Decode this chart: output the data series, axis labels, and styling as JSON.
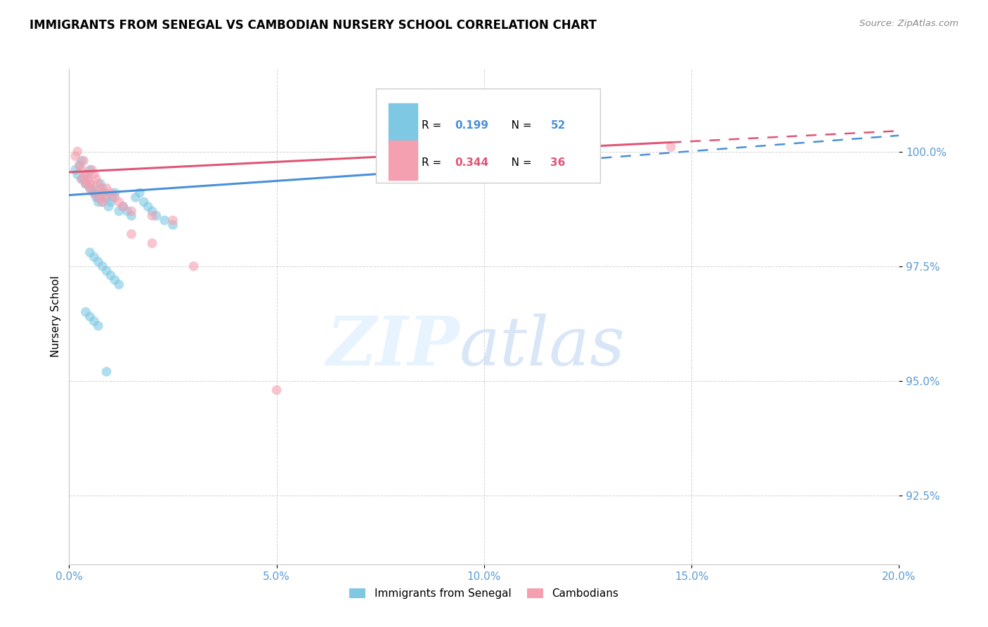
{
  "title": "IMMIGRANTS FROM SENEGAL VS CAMBODIAN NURSERY SCHOOL CORRELATION CHART",
  "source": "Source: ZipAtlas.com",
  "ylabel": "Nursery School",
  "ytick_labels": [
    "92.5%",
    "95.0%",
    "97.5%",
    "100.0%"
  ],
  "ytick_values": [
    92.5,
    95.0,
    97.5,
    100.0
  ],
  "xtick_labels": [
    "0.0%",
    "5.0%",
    "10.0%",
    "15.0%",
    "20.0%"
  ],
  "xtick_values": [
    0.0,
    5.0,
    10.0,
    15.0,
    20.0
  ],
  "xmin": 0.0,
  "xmax": 20.0,
  "ymin": 91.0,
  "ymax": 101.8,
  "legend_label1": "Immigrants from Senegal",
  "legend_label2": "Cambodians",
  "r1": 0.199,
  "n1": 52,
  "r2": 0.344,
  "n2": 36,
  "color_blue": "#7ec8e3",
  "color_pink": "#f4a0b0",
  "color_blue_line": "#4a90d9",
  "color_pink_line": "#e05575",
  "blue_line_x0": 0.0,
  "blue_line_y0": 99.05,
  "blue_line_x1": 10.5,
  "blue_line_y1": 99.7,
  "blue_line_dash_x1": 20.0,
  "blue_line_dash_y1": 100.35,
  "pink_line_x0": 0.0,
  "pink_line_y0": 99.55,
  "pink_line_x1": 14.5,
  "pink_line_y1": 100.2,
  "pink_line_dash_x1": 20.0,
  "pink_line_dash_y1": 100.45,
  "blue_scatter_x": [
    0.15,
    0.2,
    0.25,
    0.3,
    0.35,
    0.4,
    0.45,
    0.5,
    0.55,
    0.6,
    0.65,
    0.7,
    0.75,
    0.8,
    0.85,
    0.9,
    0.95,
    1.0,
    1.05,
    1.1,
    1.2,
    1.3,
    1.4,
    1.5,
    1.6,
    1.7,
    1.8,
    1.9,
    2.0,
    2.1,
    2.3,
    2.5,
    0.3,
    0.4,
    0.5,
    0.6,
    0.7,
    0.8,
    0.5,
    0.6,
    0.7,
    0.8,
    0.9,
    1.0,
    1.1,
    1.2,
    0.4,
    0.5,
    0.6,
    0.7,
    0.9,
    10.5
  ],
  "blue_scatter_y": [
    99.6,
    99.5,
    99.7,
    99.8,
    99.4,
    99.3,
    99.5,
    99.6,
    99.2,
    99.1,
    99.0,
    98.9,
    99.3,
    99.2,
    99.1,
    99.0,
    98.8,
    98.9,
    99.0,
    99.1,
    98.7,
    98.8,
    98.7,
    98.6,
    99.0,
    99.1,
    98.9,
    98.8,
    98.7,
    98.6,
    98.5,
    98.4,
    99.4,
    99.3,
    99.2,
    99.1,
    99.0,
    98.9,
    97.8,
    97.7,
    97.6,
    97.5,
    97.4,
    97.3,
    97.2,
    97.1,
    96.5,
    96.4,
    96.3,
    96.2,
    95.2,
    99.7
  ],
  "pink_scatter_x": [
    0.15,
    0.2,
    0.25,
    0.3,
    0.35,
    0.4,
    0.45,
    0.5,
    0.55,
    0.6,
    0.65,
    0.7,
    0.75,
    0.8,
    0.85,
    0.9,
    1.0,
    1.1,
    1.2,
    1.3,
    1.5,
    2.0,
    2.5,
    0.3,
    0.4,
    0.5,
    0.6,
    0.7,
    0.8,
    1.5,
    2.0,
    3.0,
    5.0,
    0.4,
    0.5,
    14.5
  ],
  "pink_scatter_y": [
    99.9,
    100.0,
    99.7,
    99.6,
    99.8,
    99.5,
    99.4,
    99.3,
    99.6,
    99.5,
    99.4,
    99.3,
    99.2,
    99.1,
    99.0,
    99.2,
    99.1,
    99.0,
    98.9,
    98.8,
    98.7,
    98.6,
    98.5,
    99.4,
    99.3,
    99.2,
    99.1,
    99.0,
    98.9,
    98.2,
    98.0,
    97.5,
    94.8,
    99.5,
    99.3,
    100.1
  ]
}
